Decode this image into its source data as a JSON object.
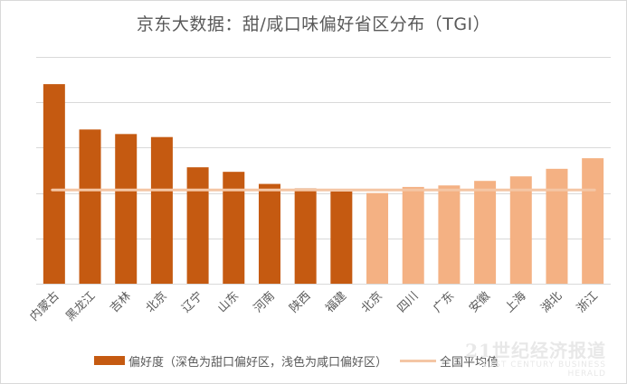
{
  "chart_data": {
    "type": "bar",
    "title": "京东大数据：甜/咸口味偏好省区分布（TGI）",
    "categories": [
      "内蒙古",
      "黑龙江",
      "吉林",
      "北京",
      "辽宁",
      "山东",
      "河南",
      "陕西",
      "福建",
      "北京",
      "四川",
      "广东",
      "安徽",
      "上海",
      "湖北",
      "浙江"
    ],
    "values": [
      162,
      132,
      129,
      127,
      107,
      104,
      96,
      93,
      91,
      90,
      94,
      95,
      98,
      101,
      106,
      113
    ],
    "series": [
      {
        "name": "偏好度（深色为甜口偏好区，浅色为咸口偏好区）",
        "values": [
          162,
          132,
          129,
          127,
          107,
          104,
          96,
          93,
          91,
          90,
          94,
          95,
          98,
          101,
          106,
          113
        ]
      }
    ],
    "groups": {
      "sweet_count": 9,
      "salty_count": 7
    },
    "reference_line": {
      "name": "全国平均值",
      "value": 92
    },
    "ylim": [
      30,
      180
    ],
    "gridlines": [
      30,
      60,
      90,
      120,
      150,
      180
    ],
    "xlabel": "",
    "ylabel": "",
    "legend_position": "bottom",
    "colors": {
      "sweet": "#c55a11",
      "salty": "#f4b183",
      "average": "#f4c6a5",
      "grid": "#d9d9d9"
    }
  },
  "watermark": {
    "main": "21世纪经济报道",
    "sub": "21ST CENTURY BUSINESS HERALD"
  }
}
